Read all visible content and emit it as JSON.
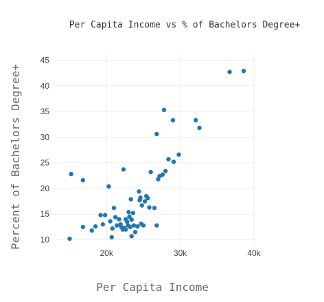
{
  "chart_data": {
    "type": "scatter",
    "title": "Per Capita Income vs % of Bachelors Degree+",
    "xlabel": "Per Capita Income",
    "ylabel": "Percent of Bachelors Degree+",
    "xlim": [
      13000,
      40000
    ],
    "ylim": [
      9,
      46
    ],
    "x_ticks": [
      20000,
      30000,
      40000
    ],
    "x_tick_labels": [
      "20k",
      "30k",
      "40k"
    ],
    "y_ticks": [
      10,
      15,
      20,
      25,
      30,
      35,
      40,
      45
    ],
    "y_tick_labels": [
      "10",
      "15",
      "20",
      "25",
      "30",
      "35",
      "40",
      "45"
    ],
    "grid": true,
    "legend": "none",
    "marker_color": "#1f77b4",
    "points": [
      {
        "x": 15000,
        "y": 10.2
      },
      {
        "x": 15200,
        "y": 22.8
      },
      {
        "x": 16800,
        "y": 21.6
      },
      {
        "x": 16800,
        "y": 12.5
      },
      {
        "x": 18000,
        "y": 11.8
      },
      {
        "x": 18500,
        "y": 12.6
      },
      {
        "x": 19200,
        "y": 14.8
      },
      {
        "x": 19500,
        "y": 13.0
      },
      {
        "x": 19800,
        "y": 14.8
      },
      {
        "x": 20300,
        "y": 20.4
      },
      {
        "x": 20500,
        "y": 13.6
      },
      {
        "x": 20700,
        "y": 10.5
      },
      {
        "x": 20800,
        "y": 12.2
      },
      {
        "x": 21000,
        "y": 16.2
      },
      {
        "x": 21200,
        "y": 14.4
      },
      {
        "x": 21400,
        "y": 12.8
      },
      {
        "x": 21700,
        "y": 14.0
      },
      {
        "x": 21900,
        "y": 13.0
      },
      {
        "x": 22000,
        "y": 12.5
      },
      {
        "x": 22200,
        "y": 12.0
      },
      {
        "x": 22300,
        "y": 23.7
      },
      {
        "x": 22400,
        "y": 12.3
      },
      {
        "x": 22600,
        "y": 14.0
      },
      {
        "x": 22600,
        "y": 12.0
      },
      {
        "x": 22800,
        "y": 13.5
      },
      {
        "x": 22900,
        "y": 12.8
      },
      {
        "x": 23000,
        "y": 15.4
      },
      {
        "x": 23100,
        "y": 14.5
      },
      {
        "x": 23200,
        "y": 12.5
      },
      {
        "x": 23300,
        "y": 17.9
      },
      {
        "x": 23400,
        "y": 10.7
      },
      {
        "x": 23400,
        "y": 13.9
      },
      {
        "x": 23600,
        "y": 15.2
      },
      {
        "x": 23700,
        "y": 12.8
      },
      {
        "x": 23900,
        "y": 11.5
      },
      {
        "x": 24200,
        "y": 12.6
      },
      {
        "x": 24400,
        "y": 19.4
      },
      {
        "x": 24500,
        "y": 17.7
      },
      {
        "x": 24600,
        "y": 18.2
      },
      {
        "x": 24700,
        "y": 13.1
      },
      {
        "x": 24800,
        "y": 16.7
      },
      {
        "x": 25000,
        "y": 12.8
      },
      {
        "x": 25200,
        "y": 17.5
      },
      {
        "x": 25400,
        "y": 18.5
      },
      {
        "x": 25600,
        "y": 18.1
      },
      {
        "x": 25800,
        "y": 16.3
      },
      {
        "x": 26000,
        "y": 23.2
      },
      {
        "x": 26500,
        "y": 16.2
      },
      {
        "x": 26800,
        "y": 12.8
      },
      {
        "x": 26800,
        "y": 30.6
      },
      {
        "x": 27000,
        "y": 21.8
      },
      {
        "x": 27200,
        "y": 22.4
      },
      {
        "x": 27600,
        "y": 22.7
      },
      {
        "x": 27800,
        "y": 35.3
      },
      {
        "x": 28000,
        "y": 23.4
      },
      {
        "x": 28400,
        "y": 25.7
      },
      {
        "x": 29000,
        "y": 33.3
      },
      {
        "x": 29100,
        "y": 25.2
      },
      {
        "x": 29800,
        "y": 26.6
      },
      {
        "x": 32100,
        "y": 33.3
      },
      {
        "x": 32600,
        "y": 31.8
      },
      {
        "x": 36700,
        "y": 42.7
      },
      {
        "x": 38600,
        "y": 42.9
      }
    ]
  }
}
